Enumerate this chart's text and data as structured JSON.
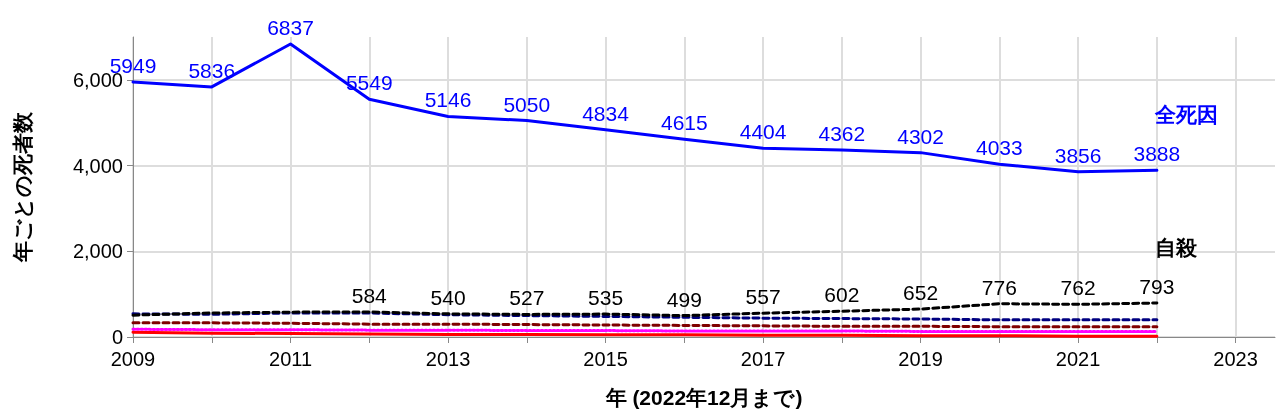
{
  "chart_data": {
    "type": "line",
    "xlabel": "年 (2022年12月まで)",
    "ylabel": "年ごとの死者数",
    "x": [
      2009,
      2010,
      2011,
      2012,
      2013,
      2014,
      2015,
      2016,
      2017,
      2018,
      2019,
      2020,
      2021,
      2022
    ],
    "series": [
      {
        "name": "全死因",
        "color": "#0000ff",
        "line_style": "solid",
        "values": [
          5949,
          5836,
          6837,
          5549,
          5146,
          5050,
          4834,
          4615,
          4404,
          4362,
          4302,
          4033,
          3856,
          3888
        ],
        "value_labels": [
          "5949",
          "5836",
          "6837",
          "5549",
          "5146",
          "5050",
          "4834",
          "4615",
          "4404",
          "4362",
          "4302",
          "4033",
          "3856",
          "3888"
        ]
      },
      {
        "name": "自殺",
        "color": "#000000",
        "line_style": "dashed",
        "values": [
          510,
          560,
          580,
          584,
          540,
          527,
          535,
          499,
          557,
          602,
          652,
          776,
          762,
          793
        ],
        "value_labels": [
          null,
          null,
          null,
          "584",
          "540",
          "527",
          "535",
          "499",
          "557",
          "602",
          "652",
          "776",
          "762",
          "793"
        ]
      },
      {
        "color": "#000080",
        "line_style": "dashed",
        "values": [
          540,
          530,
          560,
          560,
          520,
          500,
          480,
          460,
          440,
          430,
          420,
          400,
          400,
          400
        ]
      },
      {
        "color": "#800000",
        "line_style": "dashed",
        "values": [
          330,
          330,
          320,
          300,
          300,
          290,
          280,
          270,
          260,
          250,
          250,
          240,
          240,
          240
        ]
      },
      {
        "color": "#ff00ff",
        "line_style": "dotted",
        "values": [
          180,
          170,
          170,
          160,
          160,
          150,
          150,
          140,
          140,
          140,
          130,
          130,
          130,
          130
        ]
      },
      {
        "color": "#ff0000",
        "line_style": "solid",
        "values": [
          110,
          90,
          80,
          70,
          60,
          60,
          50,
          50,
          40,
          40,
          30,
          30,
          20,
          20
        ]
      }
    ],
    "xlim": [
      2009,
      2023.5
    ],
    "xticks": [
      2009,
      {
        "value": 2010,
        "label": null
      },
      2011,
      {
        "value": 2012,
        "label": null
      },
      2013,
      {
        "value": 2014,
        "label": null
      },
      2015,
      {
        "value": 2016,
        "label": null
      },
      2017,
      {
        "value": 2018,
        "label": null
      },
      2019,
      {
        "value": 2020,
        "label": null
      },
      2021,
      {
        "value": 2022,
        "label": null
      },
      2023
    ],
    "ylim": [
      0,
      7000
    ],
    "yticks": [
      0,
      {
        "value": 2000,
        "label": "2,000"
      },
      {
        "value": 4000,
        "label": "4,000"
      },
      {
        "value": 6000,
        "label": "6,000"
      }
    ],
    "grid": true,
    "legend": false,
    "marker": "none"
  }
}
